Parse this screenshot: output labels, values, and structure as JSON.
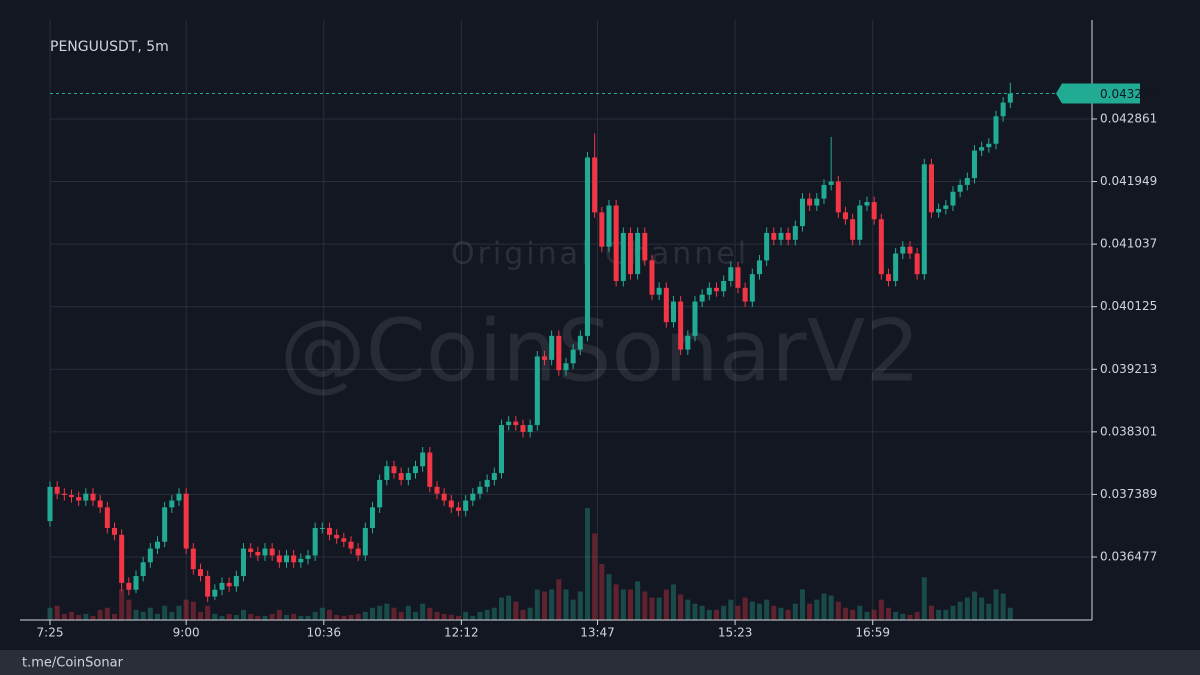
{
  "chart_data": {
    "type": "candlestick",
    "title": "PENGUUSDT, 5m",
    "watermark": "@CoinSonarV2",
    "watermark_sub": "Original Channel",
    "footer": "t.me/CoinSonar",
    "up_color": "#22ab94",
    "down_color": "#f23645",
    "grid": true,
    "last_price": 0.043232,
    "xlim": [
      445,
      1172
    ],
    "xticks": [
      {
        "value": 445,
        "label": "7:25"
      },
      {
        "value": 540,
        "label": "9:00"
      },
      {
        "value": 636,
        "label": "10:36"
      },
      {
        "value": 732,
        "label": "12:12"
      },
      {
        "value": 827,
        "label": "13:47"
      },
      {
        "value": 923,
        "label": "15:23"
      },
      {
        "value": 1019,
        "label": "16:59"
      }
    ],
    "ylim": [
      0.035559,
      0.044012
    ],
    "yticks": [
      0.036477,
      0.037389,
      0.038301,
      0.039213,
      0.040125,
      0.041037,
      0.041949,
      0.042861
    ],
    "x": [
      445,
      450,
      455,
      460,
      465,
      470,
      475,
      480,
      485,
      490,
      495,
      500,
      505,
      510,
      515,
      520,
      525,
      530,
      535,
      540,
      545,
      550,
      555,
      560,
      565,
      570,
      575,
      580,
      585,
      590,
      595,
      600,
      605,
      610,
      615,
      620,
      625,
      630,
      635,
      640,
      645,
      650,
      655,
      660,
      665,
      670,
      675,
      680,
      685,
      690,
      695,
      700,
      705,
      710,
      715,
      720,
      725,
      730,
      735,
      740,
      745,
      750,
      755,
      760,
      765,
      770,
      775,
      780,
      785,
      790,
      795,
      800,
      805,
      810,
      815,
      820,
      825,
      830,
      835,
      840,
      845,
      850,
      855,
      860,
      865,
      870,
      875,
      880,
      885,
      890,
      895,
      900,
      905,
      910,
      915,
      920,
      925,
      930,
      935,
      940,
      945,
      950,
      955,
      960,
      965,
      970,
      975,
      980,
      985,
      990,
      995,
      1000,
      1005,
      1010,
      1015,
      1020,
      1025,
      1030,
      1035,
      1040,
      1045,
      1050,
      1055,
      1060,
      1065,
      1070,
      1075,
      1080,
      1085,
      1090,
      1095,
      1100,
      1105,
      1110,
      1115
    ],
    "open": [
      0.037,
      0.0375,
      0.0374,
      0.03738,
      0.03735,
      0.0373,
      0.0374,
      0.0373,
      0.0372,
      0.0369,
      0.0368,
      0.0361,
      0.036,
      0.0362,
      0.0364,
      0.0366,
      0.0367,
      0.0372,
      0.0373,
      0.0374,
      0.0366,
      0.0363,
      0.0362,
      0.0359,
      0.036,
      0.0361,
      0.03605,
      0.0362,
      0.0366,
      0.03655,
      0.0365,
      0.0366,
      0.0365,
      0.0364,
      0.0365,
      0.0364,
      0.03645,
      0.0365,
      0.0369,
      0.0369,
      0.0368,
      0.03675,
      0.0367,
      0.0366,
      0.0365,
      0.0369,
      0.0372,
      0.0376,
      0.0378,
      0.0377,
      0.0376,
      0.0377,
      0.0378,
      0.038,
      0.0375,
      0.0374,
      0.0373,
      0.0372,
      0.03715,
      0.0373,
      0.0374,
      0.0375,
      0.0376,
      0.0377,
      0.0384,
      0.03845,
      0.0384,
      0.0383,
      0.0384,
      0.0394,
      0.03935,
      0.0397,
      0.0392,
      0.0393,
      0.0395,
      0.0397,
      0.0423,
      0.0415,
      0.041,
      0.0416,
      0.0405,
      0.0412,
      0.0406,
      0.0412,
      0.0408,
      0.0403,
      0.0404,
      0.0399,
      0.0402,
      0.0395,
      0.0397,
      0.0402,
      0.0403,
      0.0404,
      0.04035,
      0.0405,
      0.0407,
      0.0404,
      0.0402,
      0.0406,
      0.0408,
      0.0412,
      0.0411,
      0.0412,
      0.0411,
      0.0413,
      0.0417,
      0.0416,
      0.0417,
      0.0419,
      0.04195,
      0.0415,
      0.0414,
      0.0411,
      0.0416,
      0.04165,
      0.0414,
      0.0406,
      0.0405,
      0.0409,
      0.041,
      0.0409,
      0.0406,
      0.0422,
      0.0415,
      0.04155,
      0.0416,
      0.0418,
      0.0419,
      0.042,
      0.0424,
      0.04245,
      0.0425,
      0.0429,
      0.0431
    ],
    "high": [
      0.03758,
      0.03758,
      0.03748,
      0.03746,
      0.03743,
      0.03748,
      0.03748,
      0.03738,
      0.03728,
      0.03698,
      0.03688,
      0.03618,
      0.03628,
      0.03648,
      0.03668,
      0.03678,
      0.03728,
      0.03738,
      0.03748,
      0.03748,
      0.03668,
      0.03638,
      0.03628,
      0.03608,
      0.03618,
      0.03618,
      0.03628,
      0.03668,
      0.03668,
      0.03663,
      0.03668,
      0.03668,
      0.03658,
      0.03658,
      0.03658,
      0.03653,
      0.03658,
      0.03698,
      0.03698,
      0.03698,
      0.03688,
      0.03683,
      0.03678,
      0.03668,
      0.03698,
      0.03728,
      0.03768,
      0.03788,
      0.03788,
      0.03778,
      0.03778,
      0.03788,
      0.03808,
      0.03808,
      0.03758,
      0.03748,
      0.03738,
      0.03728,
      0.03738,
      0.03748,
      0.03758,
      0.03768,
      0.03778,
      0.03848,
      0.03853,
      0.03853,
      0.03848,
      0.03848,
      0.03948,
      0.03948,
      0.03978,
      0.03978,
      0.03938,
      0.03958,
      0.03978,
      0.04238,
      0.04265,
      0.04158,
      0.04168,
      0.04168,
      0.04128,
      0.04128,
      0.04128,
      0.04128,
      0.04088,
      0.04048,
      0.04048,
      0.04028,
      0.04028,
      0.03978,
      0.04028,
      0.04038,
      0.04048,
      0.04048,
      0.04058,
      0.04078,
      0.04078,
      0.04048,
      0.04068,
      0.04088,
      0.04128,
      0.04128,
      0.04128,
      0.04128,
      0.04138,
      0.04178,
      0.04178,
      0.04178,
      0.04198,
      0.0426,
      0.04203,
      0.04158,
      0.04148,
      0.04168,
      0.04173,
      0.04173,
      0.04148,
      0.04068,
      0.04098,
      0.04108,
      0.04108,
      0.04098,
      0.04228,
      0.04228,
      0.04163,
      0.04168,
      0.04188,
      0.04198,
      0.04208,
      0.04248,
      0.04253,
      0.04258,
      0.04298,
      0.04318,
      0.04339
    ],
    "low": [
      0.03692,
      0.03732,
      0.0373,
      0.03727,
      0.03722,
      0.03722,
      0.03722,
      0.03712,
      0.03682,
      0.03672,
      0.03598,
      0.03592,
      0.03595,
      0.03612,
      0.03632,
      0.03652,
      0.03662,
      0.03712,
      0.03722,
      0.03652,
      0.03622,
      0.03612,
      0.03582,
      0.03585,
      0.03592,
      0.03597,
      0.03597,
      0.03612,
      0.03647,
      0.03642,
      0.03642,
      0.03642,
      0.03632,
      0.03632,
      0.03632,
      0.03632,
      0.03637,
      0.03642,
      0.03682,
      0.03672,
      0.03667,
      0.03662,
      0.03652,
      0.03642,
      0.03642,
      0.03682,
      0.03712,
      0.03752,
      0.03762,
      0.03752,
      0.03752,
      0.03762,
      0.03772,
      0.03742,
      0.03732,
      0.03722,
      0.03712,
      0.03707,
      0.03707,
      0.03722,
      0.03732,
      0.03742,
      0.03752,
      0.03762,
      0.03832,
      0.03832,
      0.03822,
      0.03822,
      0.03832,
      0.03927,
      0.03927,
      0.03912,
      0.03912,
      0.03922,
      0.03942,
      0.03962,
      0.04142,
      0.04092,
      0.04092,
      0.04042,
      0.04042,
      0.04052,
      0.04052,
      0.04072,
      0.04022,
      0.04022,
      0.03982,
      0.03982,
      0.03942,
      0.03942,
      0.03962,
      0.04012,
      0.04022,
      0.04027,
      0.04027,
      0.04042,
      0.04032,
      0.04012,
      0.04012,
      0.04052,
      0.04072,
      0.04102,
      0.04102,
      0.04102,
      0.04102,
      0.04122,
      0.04152,
      0.04152,
      0.04162,
      0.04182,
      0.04142,
      0.04132,
      0.04102,
      0.04102,
      0.04152,
      0.04132,
      0.04052,
      0.04042,
      0.04042,
      0.04082,
      0.04082,
      0.04052,
      0.04052,
      0.04142,
      0.04142,
      0.04147,
      0.04152,
      0.04172,
      0.04182,
      0.04192,
      0.04232,
      0.04237,
      0.04242,
      0.04282,
      0.04302
    ],
    "close": [
      0.0375,
      0.0374,
      0.03738,
      0.03735,
      0.0373,
      0.0374,
      0.0373,
      0.0372,
      0.0369,
      0.0368,
      0.0361,
      0.036,
      0.0362,
      0.0364,
      0.0366,
      0.0367,
      0.0372,
      0.0373,
      0.0374,
      0.0366,
      0.0363,
      0.0362,
      0.0359,
      0.036,
      0.0361,
      0.03605,
      0.0362,
      0.0366,
      0.03655,
      0.0365,
      0.0366,
      0.0365,
      0.0364,
      0.0365,
      0.0364,
      0.03645,
      0.0365,
      0.0369,
      0.0369,
      0.0368,
      0.03675,
      0.0367,
      0.0366,
      0.0365,
      0.0369,
      0.0372,
      0.0376,
      0.0378,
      0.0377,
      0.0376,
      0.0377,
      0.0378,
      0.038,
      0.0375,
      0.0374,
      0.0373,
      0.0372,
      0.03715,
      0.0373,
      0.0374,
      0.0375,
      0.0376,
      0.0377,
      0.0384,
      0.03845,
      0.0384,
      0.0383,
      0.0384,
      0.0394,
      0.03935,
      0.0397,
      0.0392,
      0.0393,
      0.0395,
      0.0397,
      0.0423,
      0.0415,
      0.041,
      0.0416,
      0.0405,
      0.0412,
      0.0406,
      0.0412,
      0.0408,
      0.0403,
      0.0404,
      0.0399,
      0.0402,
      0.0395,
      0.0397,
      0.0402,
      0.0403,
      0.0404,
      0.04035,
      0.0405,
      0.0407,
      0.0404,
      0.0402,
      0.0406,
      0.0408,
      0.0412,
      0.0411,
      0.0412,
      0.0411,
      0.0413,
      0.0417,
      0.0416,
      0.0417,
      0.0419,
      0.04195,
      0.0415,
      0.0414,
      0.0411,
      0.0416,
      0.04165,
      0.0414,
      0.0406,
      0.0405,
      0.0409,
      0.041,
      0.0409,
      0.0406,
      0.0422,
      0.0415,
      0.04155,
      0.0416,
      0.0418,
      0.0419,
      0.042,
      0.0424,
      0.04245,
      0.0425,
      0.0429,
      0.0431,
      0.043232
    ],
    "volume": [
      12,
      14,
      6,
      8,
      5,
      6,
      4,
      10,
      12,
      6,
      30,
      20,
      10,
      8,
      12,
      6,
      14,
      8,
      14,
      20,
      18,
      8,
      14,
      6,
      4,
      6,
      5,
      10,
      6,
      4,
      4,
      6,
      10,
      5,
      6,
      4,
      4,
      8,
      12,
      10,
      5,
      4,
      5,
      6,
      8,
      12,
      14,
      16,
      12,
      8,
      14,
      8,
      16,
      12,
      8,
      6,
      5,
      4,
      8,
      4,
      8,
      10,
      12,
      22,
      24,
      18,
      10,
      12,
      30,
      28,
      30,
      40,
      30,
      20,
      28,
      110,
      85,
      55,
      45,
      35,
      30,
      30,
      38,
      28,
      22,
      22,
      30,
      35,
      25,
      20,
      16,
      14,
      10,
      10,
      14,
      20,
      14,
      22,
      18,
      16,
      20,
      14,
      12,
      10,
      16,
      30,
      16,
      20,
      26,
      24,
      18,
      12,
      10,
      14,
      8,
      10,
      20,
      12,
      8,
      6,
      5,
      8,
      42,
      14,
      10,
      10,
      14,
      18,
      22,
      28,
      22,
      16,
      30,
      26,
      12
    ]
  }
}
